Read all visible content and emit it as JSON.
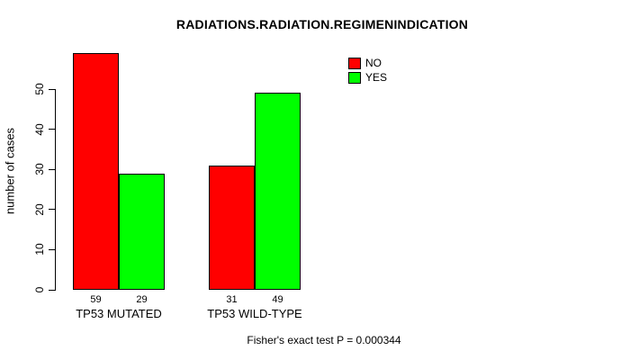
{
  "title": "RADIATIONS.RADIATION.REGIMENINDICATION",
  "chart_data": {
    "type": "bar",
    "title": "RADIATIONS.RADIATION.REGIMENINDICATION",
    "categories": [
      "TP53 MUTATED",
      "TP53 WILD-TYPE"
    ],
    "series": [
      {
        "name": "NO",
        "color": "#ff0000",
        "values": [
          59,
          31
        ]
      },
      {
        "name": "YES",
        "color": "#00ff00",
        "values": [
          29,
          49
        ]
      }
    ],
    "bar_value_labels": [
      [
        59,
        29
      ],
      [
        31,
        49
      ]
    ],
    "xlabel": "",
    "ylabel": "number of cases",
    "yticks": [
      0,
      10,
      20,
      30,
      40,
      50
    ],
    "ylim": [
      0,
      59
    ],
    "grid": false,
    "legend_position": "top-right",
    "legend_items": [
      {
        "label": "NO",
        "color": "#ff0000"
      },
      {
        "label": "YES",
        "color": "#00ff00"
      }
    ]
  },
  "footer": {
    "text": "Fisher's exact test P = 0.000344"
  },
  "colors": {
    "bar_no": "#ff0000",
    "bar_yes": "#00ff00",
    "axis": "#000000",
    "background": "#ffffff"
  }
}
